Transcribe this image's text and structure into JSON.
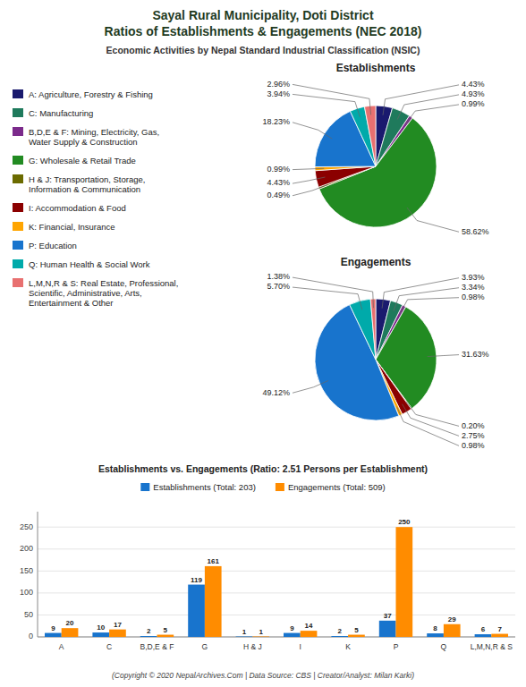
{
  "chart_data": [
    {
      "type": "pie",
      "title": "Sayal Rural Municipality, Doti District\nRatios of Establishments & Engagements (NEC 2018)",
      "subtitle": "Economic Activities by Nepal Standard Industrial Classification (NSIC)",
      "categories": [
        "A: Agriculture, Forestry & Fishing",
        "C: Manufacturing",
        "B,D,E & F: Mining, Electricity, Gas,\nWater Supply & Construction",
        "G: Wholesale & Retail Trade",
        "H & J: Transportation, Storage,\nInformation & Communication",
        "I: Accommodation & Food",
        "K: Financial, Insurance",
        "P: Education",
        "Q: Human Health & Social Work",
        "L,M,N,R & S: Real Estate, Professional,\nScientific, Administrative, Arts,\nEntertainment & Other"
      ],
      "colors": [
        "#1a1a6e",
        "#1f7a5c",
        "#7b2a8b",
        "#228B22",
        "#6B6B00",
        "#8B0000",
        "#FFA500",
        "#1874CD",
        "#00AAAA",
        "#E87070"
      ],
      "data_labels": true,
      "series": [
        {
          "name": "Establishments",
          "values": [
            4.43,
            4.93,
            0.99,
            58.62,
            0.49,
            4.43,
            0.99,
            18.23,
            3.94,
            2.96
          ],
          "value_labels": [
            "4.43%",
            "4.93%",
            "0.99%",
            "58.62%",
            "0.49%",
            "4.43%",
            "0.99%",
            "18.23%",
            "3.94%",
            "2.96%"
          ]
        },
        {
          "name": "Engagements",
          "values": [
            3.93,
            3.34,
            0.98,
            31.63,
            0.2,
            2.75,
            0.98,
            49.12,
            5.7,
            1.38
          ],
          "value_labels": [
            "3.93%",
            "3.34%",
            "0.98%",
            "31.63%",
            "0.20%",
            "2.75%",
            "0.98%",
            "49.12%",
            "5.70%",
            "1.38%"
          ]
        }
      ]
    },
    {
      "type": "bar",
      "title": "Establishments vs. Engagements (Ratio: 2.51 Persons per Establishment)",
      "categories": [
        "A",
        "C",
        "B,D,E & F",
        "G",
        "H & J",
        "I",
        "K",
        "P",
        "Q",
        "L,M,N,R & S"
      ],
      "series": [
        {
          "name": "Establishments (Total: 203)",
          "color": "#1874CD",
          "values": [
            9,
            10,
            2,
            119,
            1,
            9,
            2,
            37,
            8,
            6
          ]
        },
        {
          "name": "Engagements (Total: 509)",
          "color": "#FF8C00",
          "values": [
            20,
            17,
            5,
            161,
            1,
            14,
            5,
            250,
            29,
            7
          ]
        }
      ],
      "ylim": [
        0,
        285
      ],
      "yticks": [
        0,
        50,
        100,
        150,
        200,
        250
      ],
      "grid": true,
      "data_labels": true,
      "legend": "top",
      "annotations": [
        "(Copyright © 2020 NepalArchives.Com | Data Source: CBS | Creator/Analyst: Milan Karki)"
      ]
    }
  ]
}
